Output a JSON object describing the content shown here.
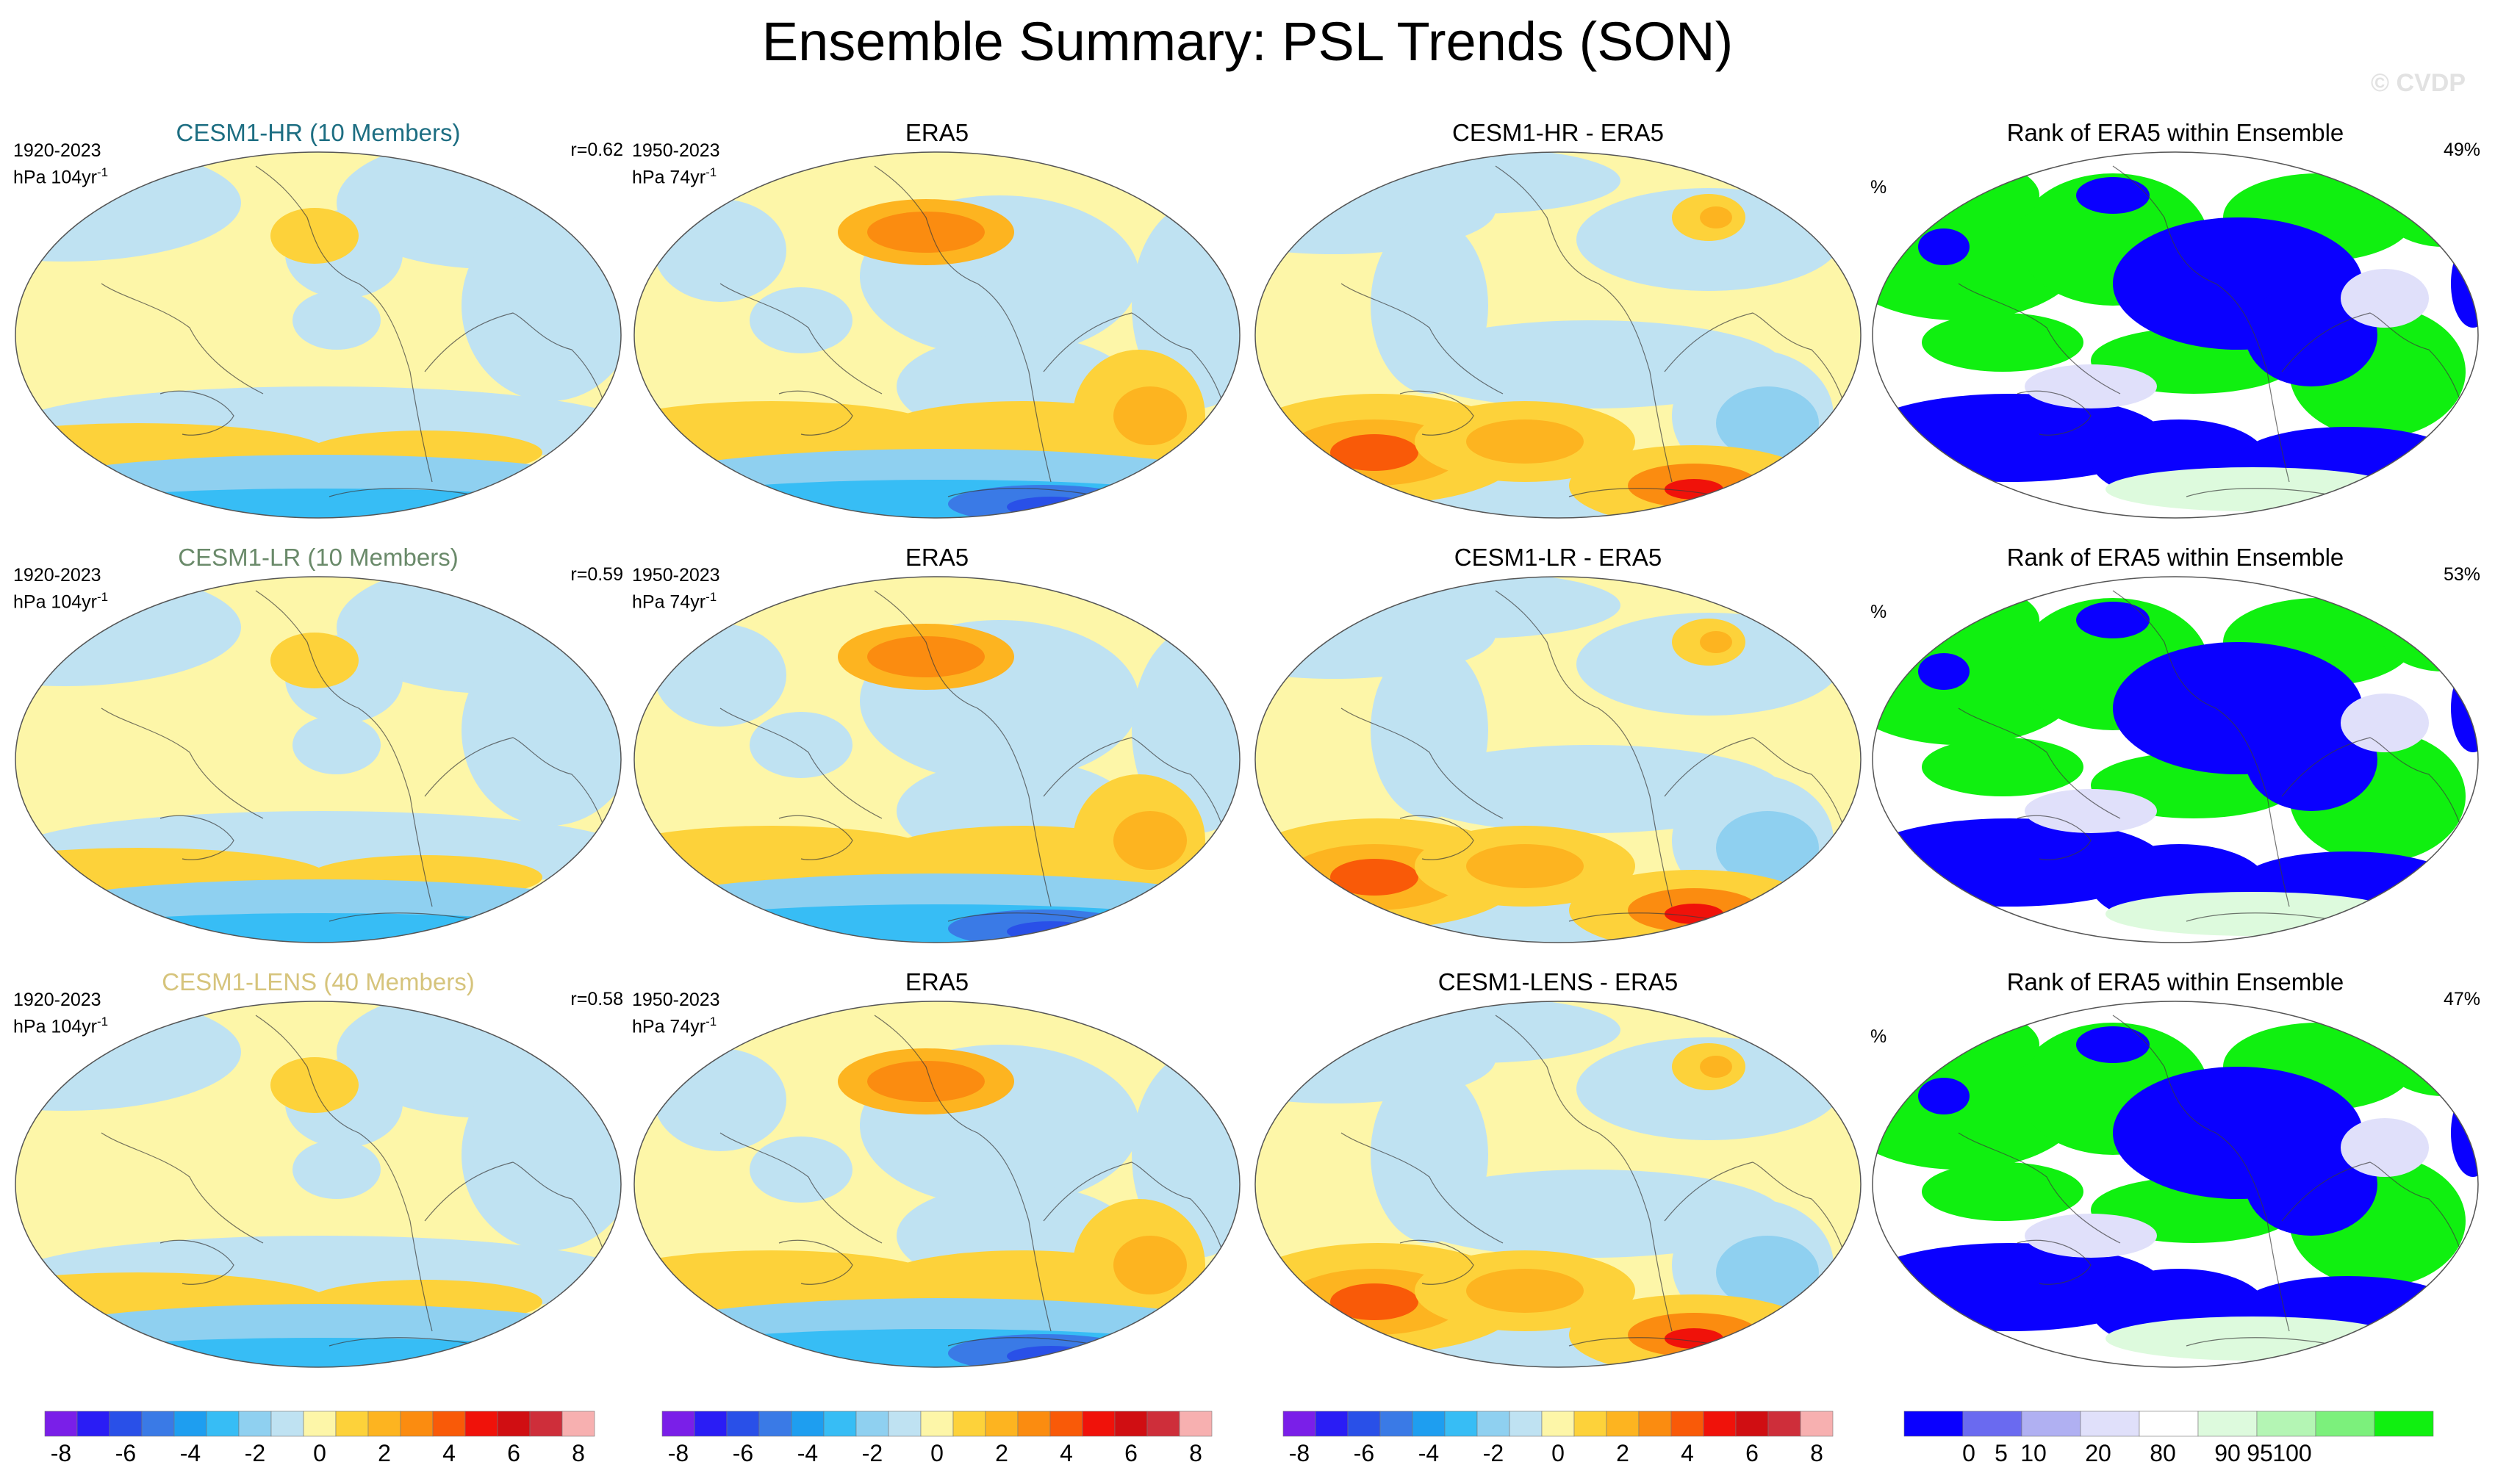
{
  "title": "Ensemble Summary: PSL Trends (SON)",
  "watermark": "© CVDP",
  "colors": {
    "diverging": [
      "#7a1fe8",
      "#2a1df5",
      "#2950e8",
      "#3a7ae6",
      "#1e9ef0",
      "#37bdf5",
      "#8fd0f0",
      "#bfe2f2",
      "#fdf6a8",
      "#fdd23a",
      "#fdb420",
      "#fb8c10",
      "#f95a08",
      "#f0120a",
      "#d00e12",
      "#ce2e3a",
      "#f7b0b0"
    ],
    "rank": [
      "#0a00ff",
      "#6a6af0",
      "#b0b0f2",
      "#e0e0fa",
      "#ffffff",
      "#ddfadd",
      "#b4f5b4",
      "#7cf07c",
      "#10f010"
    ]
  },
  "colorbars": [
    {
      "type": "diverging",
      "ticks": [
        "-8",
        "-6",
        "-4",
        "-2",
        "0",
        "2",
        "4",
        "6",
        "8"
      ]
    },
    {
      "type": "diverging",
      "ticks": [
        "-8",
        "-6",
        "-4",
        "-2",
        "0",
        "2",
        "4",
        "6",
        "8"
      ]
    },
    {
      "type": "diverging",
      "ticks": [
        "-8",
        "-6",
        "-4",
        "-2",
        "0",
        "2",
        "4",
        "6",
        "8"
      ]
    },
    {
      "type": "rank",
      "ticks": [
        "0",
        "5",
        "10",
        "20",
        "80",
        "90",
        "95",
        "100"
      ]
    }
  ],
  "rows": [
    {
      "model": {
        "title": "CESM1-HR (10 Members)",
        "title_color": "#1d6e82",
        "period": "1920-2023",
        "units_base": "hPa 104yr",
        "units_exp": "-1",
        "corr": "r=0.62"
      },
      "obs": {
        "title": "ERA5",
        "period": "1950-2023",
        "units_base": "hPa 74yr",
        "units_exp": "-1"
      },
      "diff": {
        "title": "CESM1-HR - ERA5"
      },
      "rank": {
        "title": "Rank of ERA5 within Ensemble",
        "unit": "%",
        "pct": "49%"
      }
    },
    {
      "model": {
        "title": "CESM1-LR (10 Members)",
        "title_color": "#6a8a6a",
        "period": "1920-2023",
        "units_base": "hPa 104yr",
        "units_exp": "-1",
        "corr": "r=0.59"
      },
      "obs": {
        "title": "ERA5",
        "period": "1950-2023",
        "units_base": "hPa 74yr",
        "units_exp": "-1"
      },
      "diff": {
        "title": "CESM1-LR - ERA5"
      },
      "rank": {
        "title": "Rank of ERA5 within Ensemble",
        "unit": "%",
        "pct": "53%"
      }
    },
    {
      "model": {
        "title": "CESM1-LENS (40 Members)",
        "title_color": "#d6c47c",
        "period": "1920-2023",
        "units_base": "hPa 104yr",
        "units_exp": "-1",
        "corr": "r=0.58"
      },
      "obs": {
        "title": "ERA5",
        "period": "1950-2023",
        "units_base": "hPa 74yr",
        "units_exp": "-1"
      },
      "diff": {
        "title": "CESM1-LENS - ERA5"
      },
      "rank": {
        "title": "Rank of ERA5 within Ensemble",
        "unit": "%",
        "pct": "47%"
      }
    }
  ],
  "chart_data": {
    "type": "heatmap",
    "projection": "global map",
    "variable": "PSL trends",
    "season": "SON",
    "panels_per_row": 4,
    "trend_levels": [
      -8,
      -7,
      -6,
      -5,
      -4,
      -3,
      -2,
      -1,
      0,
      1,
      2,
      3,
      4,
      5,
      6,
      7,
      8
    ],
    "rank_levels": [
      0,
      5,
      10,
      20,
      80,
      90,
      95,
      100
    ],
    "pattern_correlations": [
      0.62,
      0.59,
      0.58
    ],
    "rank_percentages": [
      49,
      53,
      47
    ]
  }
}
